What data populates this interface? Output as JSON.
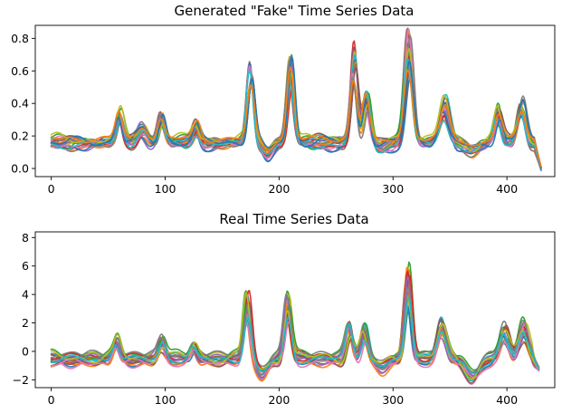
{
  "chart_data": [
    {
      "type": "line",
      "title": "Generated \"Fake\" Time Series Data",
      "xlabel": "",
      "ylabel": "",
      "xlim": [
        -14,
        442
      ],
      "ylim": [
        -0.05,
        0.88
      ],
      "xticks": [
        0,
        100,
        200,
        300,
        400
      ],
      "yticks": [
        0.0,
        0.2,
        0.4,
        0.6,
        0.8
      ],
      "ytick_labels": [
        "0.0",
        "0.2",
        "0.4",
        "0.6",
        "0.8"
      ],
      "x_range": [
        0,
        430
      ],
      "baseline": 0.16,
      "peaks": [
        {
          "x": 60,
          "h": 0.14,
          "w": 3
        },
        {
          "x": 80,
          "h": 0.08,
          "w": 4
        },
        {
          "x": 97,
          "h": 0.16,
          "w": 3
        },
        {
          "x": 127,
          "h": 0.09,
          "w": 3
        },
        {
          "x": 175,
          "h": 0.44,
          "w": 3
        },
        {
          "x": 210,
          "h": 0.44,
          "w": 3
        },
        {
          "x": 266,
          "h": 0.5,
          "w": 3
        },
        {
          "x": 277,
          "h": 0.26,
          "w": 3
        },
        {
          "x": 314,
          "h": 0.57,
          "w": 3.5
        },
        {
          "x": 345,
          "h": 0.22,
          "w": 4
        },
        {
          "x": 392,
          "h": 0.18,
          "w": 3
        },
        {
          "x": 413,
          "h": 0.22,
          "w": 3.5
        }
      ],
      "dips": [
        {
          "x": 190,
          "h": -0.06,
          "w": 4
        },
        {
          "x": 290,
          "h": -0.03,
          "w": 5
        },
        {
          "x": 370,
          "h": -0.04,
          "w": 6
        }
      ],
      "end_value": 0.0,
      "series_count": 22
    },
    {
      "type": "line",
      "title": "Real Time Series Data",
      "xlabel": "",
      "ylabel": "",
      "xlim": [
        -14,
        442
      ],
      "ylim": [
        -2.55,
        8.4
      ],
      "xticks": [
        0,
        100,
        200,
        300,
        400
      ],
      "yticks": [
        -2,
        0,
        2,
        4,
        6,
        8
      ],
      "ytick_labels": [
        "−2",
        "0",
        "2",
        "4",
        "6",
        "8"
      ],
      "x_range": [
        0,
        428
      ],
      "baseline": -0.5,
      "peaks": [
        {
          "x": 57,
          "h": 1.5,
          "w": 3
        },
        {
          "x": 97,
          "h": 1.2,
          "w": 3
        },
        {
          "x": 125,
          "h": 0.9,
          "w": 3
        },
        {
          "x": 172,
          "h": 4.0,
          "w": 3
        },
        {
          "x": 208,
          "h": 3.6,
          "w": 3
        },
        {
          "x": 262,
          "h": 2.0,
          "w": 3
        },
        {
          "x": 275,
          "h": 2.0,
          "w": 3
        },
        {
          "x": 313,
          "h": 5.5,
          "w": 3
        },
        {
          "x": 343,
          "h": 2.4,
          "w": 4
        },
        {
          "x": 398,
          "h": 1.8,
          "w": 4
        },
        {
          "x": 415,
          "h": 2.2,
          "w": 4
        }
      ],
      "dips": [
        {
          "x": 185,
          "h": -1.0,
          "w": 5
        },
        {
          "x": 290,
          "h": -0.6,
          "w": 5
        },
        {
          "x": 370,
          "h": -1.2,
          "w": 6
        }
      ],
      "end_value": -1.2,
      "series_count": 20
    }
  ],
  "colors": [
    "#1f77b4",
    "#ff7f0e",
    "#2ca02c",
    "#d62728",
    "#9467bd",
    "#8c564b",
    "#e377c2",
    "#7f7f7f",
    "#bcbd22",
    "#17becf"
  ]
}
